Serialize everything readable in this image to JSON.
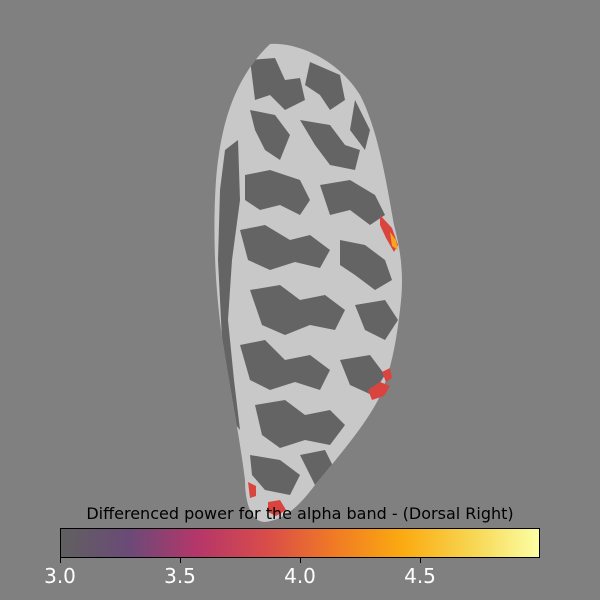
{
  "view": {
    "background_color": "#808080",
    "surface_colors": {
      "gyri": "#c8c8c8",
      "sulci": "#646464"
    },
    "overlay_colormap": "inferno"
  },
  "colorbar": {
    "title": "Differenced power for the alpha band - (Dorsal Right)",
    "ticks": [
      "3.0",
      "3.5",
      "4.0",
      "4.5"
    ],
    "range": [
      3.0,
      5.0
    ],
    "stops": [
      "#606060",
      "#6b4a78",
      "#b5366a",
      "#d84c4a",
      "#f07a25",
      "#fbaa10",
      "#f7d550",
      "#fcfea4"
    ]
  }
}
